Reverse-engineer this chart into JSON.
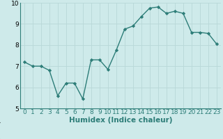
{
  "x": [
    0,
    1,
    2,
    3,
    4,
    5,
    6,
    7,
    8,
    9,
    10,
    11,
    12,
    13,
    14,
    15,
    16,
    17,
    18,
    19,
    20,
    21,
    22,
    23
  ],
  "y": [
    7.2,
    7.0,
    7.0,
    6.8,
    5.6,
    6.2,
    6.2,
    5.45,
    7.3,
    7.3,
    6.85,
    7.75,
    8.75,
    8.9,
    9.35,
    9.75,
    9.8,
    9.5,
    9.6,
    9.5,
    8.6,
    8.6,
    8.55,
    8.05
  ],
  "line_color": "#2d7d78",
  "marker": "D",
  "marker_size": 2.2,
  "bg_color": "#ceeaea",
  "grid_color": "#b8d8d8",
  "xlabel": "Humidex (Indice chaleur)",
  "xlim": [
    -0.5,
    23.5
  ],
  "ylim": [
    5,
    10
  ],
  "yticks": [
    5,
    6,
    7,
    8,
    9,
    10
  ],
  "xticks": [
    0,
    1,
    2,
    3,
    4,
    5,
    6,
    7,
    8,
    9,
    10,
    11,
    12,
    13,
    14,
    15,
    16,
    17,
    18,
    19,
    20,
    21,
    22,
    23
  ],
  "tick_label_fontsize": 6.5,
  "xlabel_fontsize": 7.5,
  "line_width": 1.0,
  "spine_color": "#2d7d78",
  "bottom_bar_color": "#2d7d78",
  "bottom_bar_height": 0.12
}
